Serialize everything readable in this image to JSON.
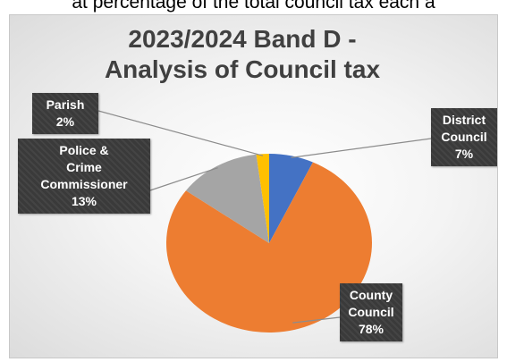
{
  "header": {
    "caption": "at percentage of the total council tax each a"
  },
  "chart_data": {
    "type": "pie",
    "title_lines": [
      "2023/2024 Band D -",
      "Analysis of Council tax"
    ],
    "slices": [
      {
        "label_lines": [
          "District",
          "Council"
        ],
        "value": 7,
        "pct_text": "7%",
        "color": "#4472C4"
      },
      {
        "label_lines": [
          "County",
          "Council"
        ],
        "value": 78,
        "pct_text": "78%",
        "color": "#ED7D31"
      },
      {
        "label_lines": [
          "Police &",
          "Crime",
          "Commissioner"
        ],
        "value": 13,
        "pct_text": "13%",
        "color": "#A5A5A5"
      },
      {
        "label_lines": [
          "Parish"
        ],
        "value": 2,
        "pct_text": "2%",
        "color": "#FFC000"
      }
    ],
    "start_angle_deg": 0,
    "direction": "clockwise",
    "legend": "none",
    "data_labels": "callouts with leader lines"
  }
}
